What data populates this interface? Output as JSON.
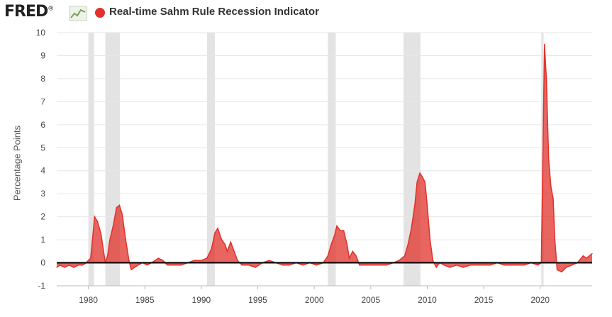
{
  "header": {
    "logo_text": "FRED",
    "logo_suffix": "®",
    "logo_icon": "line-chart-icon",
    "series_title": "Real-time Sahm Rule Recession Indicator"
  },
  "colors": {
    "series": "#e0312b",
    "series_fill": "#e0312b",
    "zero_line": "#000000",
    "recession_band": "#e3e3e3",
    "grid": "#e6e6e6",
    "tick_text": "#444444",
    "axis": "#bbbbbb"
  },
  "chart_data": {
    "type": "area",
    "ylabel": "Percentage Points",
    "xlabel": "",
    "xlim": [
      1977.2,
      2024.6
    ],
    "ylim": [
      -1,
      10
    ],
    "yticks": [
      -1,
      0,
      1,
      2,
      3,
      4,
      5,
      6,
      7,
      8,
      9,
      10
    ],
    "xticks": [
      1980,
      1985,
      1990,
      1995,
      2000,
      2005,
      2010,
      2015,
      2020
    ],
    "grid": "horizontal",
    "recessions": [
      [
        1980.0,
        1980.5
      ],
      [
        1981.5,
        1982.8
      ],
      [
        1990.5,
        1991.2
      ],
      [
        2001.2,
        2001.9
      ],
      [
        2007.9,
        2009.4
      ],
      [
        2020.1,
        2020.3
      ]
    ],
    "series": [
      {
        "points": [
          [
            1977.2,
            -0.2
          ],
          [
            1977.5,
            -0.1
          ],
          [
            1977.9,
            -0.2
          ],
          [
            1978.3,
            -0.1
          ],
          [
            1978.7,
            -0.2
          ],
          [
            1979.1,
            -0.1
          ],
          [
            1979.5,
            -0.1
          ],
          [
            1979.8,
            0.0
          ],
          [
            1980.0,
            0.1
          ],
          [
            1980.2,
            0.2
          ],
          [
            1980.4,
            1.2
          ],
          [
            1980.55,
            2.0
          ],
          [
            1980.8,
            1.8
          ],
          [
            1981.1,
            1.3
          ],
          [
            1981.35,
            0.5
          ],
          [
            1981.5,
            0.0
          ],
          [
            1981.7,
            0.3
          ],
          [
            1981.9,
            1.0
          ],
          [
            1982.2,
            1.6
          ],
          [
            1982.5,
            2.4
          ],
          [
            1982.75,
            2.5
          ],
          [
            1983.0,
            2.1
          ],
          [
            1983.3,
            1.0
          ],
          [
            1983.6,
            0.1
          ],
          [
            1983.8,
            -0.3
          ],
          [
            1984.1,
            -0.2
          ],
          [
            1984.4,
            -0.1
          ],
          [
            1984.8,
            0.0
          ],
          [
            1985.2,
            -0.1
          ],
          [
            1985.6,
            0.0
          ],
          [
            1986.2,
            0.2
          ],
          [
            1986.6,
            0.1
          ],
          [
            1987.0,
            -0.1
          ],
          [
            1987.6,
            -0.1
          ],
          [
            1988.2,
            -0.1
          ],
          [
            1988.8,
            0.0
          ],
          [
            1989.4,
            0.1
          ],
          [
            1990.0,
            0.1
          ],
          [
            1990.5,
            0.2
          ],
          [
            1990.9,
            0.6
          ],
          [
            1991.2,
            1.3
          ],
          [
            1991.45,
            1.5
          ],
          [
            1991.8,
            1.0
          ],
          [
            1992.1,
            0.8
          ],
          [
            1992.3,
            0.5
          ],
          [
            1992.6,
            0.9
          ],
          [
            1992.9,
            0.5
          ],
          [
            1993.2,
            0.1
          ],
          [
            1993.6,
            -0.1
          ],
          [
            1994.2,
            -0.1
          ],
          [
            1994.8,
            -0.2
          ],
          [
            1995.4,
            0.0
          ],
          [
            1996.0,
            0.1
          ],
          [
            1996.6,
            0.0
          ],
          [
            1997.2,
            -0.1
          ],
          [
            1997.8,
            -0.1
          ],
          [
            1998.4,
            0.0
          ],
          [
            1999.0,
            -0.1
          ],
          [
            1999.6,
            0.0
          ],
          [
            2000.2,
            -0.1
          ],
          [
            2000.8,
            0.0
          ],
          [
            2001.2,
            0.3
          ],
          [
            2001.5,
            0.8
          ],
          [
            2001.8,
            1.2
          ],
          [
            2002.0,
            1.6
          ],
          [
            2002.3,
            1.4
          ],
          [
            2002.6,
            1.4
          ],
          [
            2002.9,
            0.8
          ],
          [
            2003.1,
            0.2
          ],
          [
            2003.4,
            0.5
          ],
          [
            2003.7,
            0.3
          ],
          [
            2004.0,
            -0.1
          ],
          [
            2004.6,
            -0.1
          ],
          [
            2005.2,
            -0.1
          ],
          [
            2005.8,
            -0.1
          ],
          [
            2006.4,
            -0.1
          ],
          [
            2007.0,
            0.0
          ],
          [
            2007.5,
            0.1
          ],
          [
            2008.0,
            0.3
          ],
          [
            2008.3,
            0.8
          ],
          [
            2008.6,
            1.5
          ],
          [
            2008.9,
            2.5
          ],
          [
            2009.1,
            3.5
          ],
          [
            2009.35,
            3.9
          ],
          [
            2009.6,
            3.7
          ],
          [
            2009.8,
            3.5
          ],
          [
            2010.0,
            2.5
          ],
          [
            2010.25,
            1.0
          ],
          [
            2010.5,
            0.1
          ],
          [
            2010.8,
            -0.2
          ],
          [
            2011.1,
            0.0
          ],
          [
            2011.5,
            -0.1
          ],
          [
            2012.0,
            -0.2
          ],
          [
            2012.6,
            -0.1
          ],
          [
            2013.2,
            -0.2
          ],
          [
            2013.8,
            -0.1
          ],
          [
            2014.4,
            -0.1
          ],
          [
            2015.0,
            -0.1
          ],
          [
            2015.6,
            -0.1
          ],
          [
            2016.2,
            0.0
          ],
          [
            2016.8,
            -0.1
          ],
          [
            2017.4,
            -0.1
          ],
          [
            2018.0,
            -0.1
          ],
          [
            2018.6,
            -0.1
          ],
          [
            2019.2,
            0.0
          ],
          [
            2019.8,
            -0.1
          ],
          [
            2020.1,
            0.0
          ],
          [
            2020.25,
            5.0
          ],
          [
            2020.38,
            9.5
          ],
          [
            2020.55,
            8.0
          ],
          [
            2020.75,
            4.5
          ],
          [
            2020.95,
            3.3
          ],
          [
            2021.15,
            2.8
          ],
          [
            2021.3,
            1.0
          ],
          [
            2021.5,
            -0.3
          ],
          [
            2021.9,
            -0.4
          ],
          [
            2022.3,
            -0.2
          ],
          [
            2022.8,
            -0.1
          ],
          [
            2023.3,
            0.0
          ],
          [
            2023.8,
            0.3
          ],
          [
            2024.1,
            0.2
          ],
          [
            2024.6,
            0.4
          ]
        ]
      }
    ]
  }
}
